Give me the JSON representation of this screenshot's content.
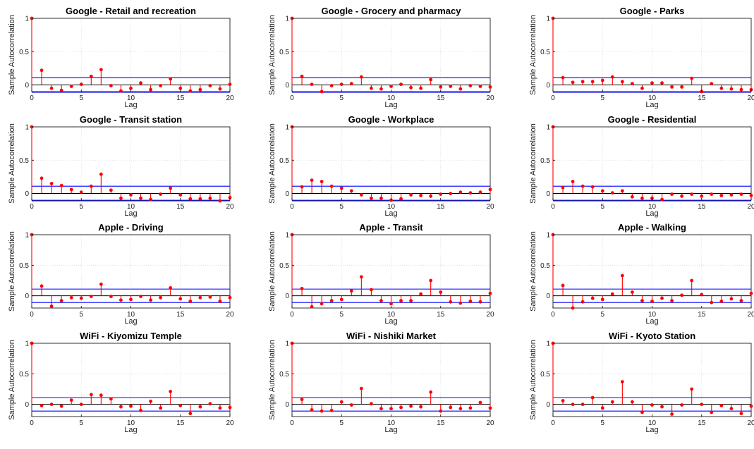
{
  "chart_data": [
    {
      "type": "stem",
      "title": "Google - Retail and recreation",
      "xlabel": "Lag",
      "ylabel": "Sample Autocorrelation",
      "xlim": [
        0,
        20
      ],
      "ylim": [
        -0.1,
        1
      ],
      "xticks": [
        0,
        5,
        10,
        15,
        20
      ],
      "yticks": [
        0,
        0.5,
        1
      ],
      "bounds": [
        0.11,
        -0.11
      ],
      "grid": true,
      "x": [
        0,
        1,
        2,
        3,
        4,
        5,
        6,
        7,
        8,
        9,
        10,
        11,
        12,
        13,
        14,
        15,
        16,
        17,
        18,
        19,
        20
      ],
      "values": [
        1,
        0.22,
        -0.05,
        -0.08,
        -0.02,
        0.01,
        0.13,
        0.23,
        -0.01,
        -0.09,
        -0.05,
        0.03,
        -0.07,
        -0.01,
        0.09,
        -0.05,
        -0.09,
        -0.07,
        -0.01,
        -0.06,
        0.01
      ]
    },
    {
      "type": "stem",
      "title": "Google - Grocery and pharmacy",
      "xlabel": "Lag",
      "ylabel": "Sample Autocorrelation",
      "xlim": [
        0,
        20
      ],
      "ylim": [
        -0.1,
        1
      ],
      "xticks": [
        0,
        5,
        10,
        15,
        20
      ],
      "yticks": [
        0,
        0.5,
        1
      ],
      "bounds": [
        0.11,
        -0.11
      ],
      "grid": true,
      "x": [
        0,
        1,
        2,
        3,
        4,
        5,
        6,
        7,
        8,
        9,
        10,
        11,
        12,
        13,
        14,
        15,
        16,
        17,
        18,
        19,
        20
      ],
      "values": [
        1,
        0.13,
        0.01,
        -0.1,
        -0.01,
        0.01,
        0.02,
        0.12,
        -0.05,
        -0.06,
        -0.02,
        0.01,
        -0.04,
        -0.05,
        0.08,
        -0.03,
        -0.02,
        -0.06,
        -0.01,
        -0.02,
        -0.03
      ]
    },
    {
      "type": "stem",
      "title": "Google - Parks",
      "xlabel": "Lag",
      "ylabel": "Sample Autocorrelation",
      "xlim": [
        0,
        20
      ],
      "ylim": [
        -0.1,
        1
      ],
      "xticks": [
        0,
        5,
        10,
        15,
        20
      ],
      "yticks": [
        0,
        0.5,
        1
      ],
      "bounds": [
        0.11,
        -0.11
      ],
      "grid": true,
      "x": [
        0,
        1,
        2,
        3,
        4,
        5,
        6,
        7,
        8,
        9,
        10,
        11,
        12,
        13,
        14,
        15,
        16,
        17,
        18,
        19,
        20
      ],
      "values": [
        1,
        0.11,
        0.04,
        0.05,
        0.05,
        0.07,
        0.12,
        0.05,
        0.02,
        -0.05,
        0.03,
        0.03,
        -0.03,
        -0.03,
        0.1,
        -0.1,
        0.02,
        -0.05,
        -0.06,
        -0.07,
        -0.07
      ]
    },
    {
      "type": "stem",
      "title": "Google - Transit station",
      "xlabel": "Lag",
      "ylabel": "Sample Autocorrelation",
      "xlim": [
        0,
        20
      ],
      "ylim": [
        -0.1,
        1
      ],
      "xticks": [
        0,
        5,
        10,
        15,
        20
      ],
      "yticks": [
        0,
        0.5,
        1
      ],
      "bounds": [
        0.11,
        -0.11
      ],
      "grid": true,
      "x": [
        0,
        1,
        2,
        3,
        4,
        5,
        6,
        7,
        8,
        9,
        10,
        11,
        12,
        13,
        14,
        15,
        16,
        17,
        18,
        19,
        20
      ],
      "values": [
        1,
        0.23,
        0.15,
        0.12,
        0.06,
        0.02,
        0.11,
        0.29,
        0.05,
        -0.07,
        -0.02,
        -0.07,
        -0.09,
        -0.01,
        0.08,
        -0.02,
        -0.08,
        -0.08,
        -0.07,
        -0.11,
        -0.06
      ]
    },
    {
      "type": "stem",
      "title": "Google - Workplace",
      "xlabel": "Lag",
      "ylabel": "Sample Autocorrelation",
      "xlim": [
        0,
        20
      ],
      "ylim": [
        -0.1,
        1
      ],
      "xticks": [
        0,
        5,
        10,
        15,
        20
      ],
      "yticks": [
        0,
        0.5,
        1
      ],
      "bounds": [
        0.11,
        -0.11
      ],
      "grid": true,
      "x": [
        0,
        1,
        2,
        3,
        4,
        5,
        6,
        7,
        8,
        9,
        10,
        11,
        12,
        13,
        14,
        15,
        16,
        17,
        18,
        19,
        20
      ],
      "values": [
        1,
        0.1,
        0.2,
        0.18,
        0.11,
        0.08,
        0.04,
        -0.02,
        -0.07,
        -0.07,
        -0.1,
        -0.08,
        -0.02,
        -0.03,
        -0.04,
        -0.01,
        0,
        0.02,
        0.01,
        0.02,
        0.06
      ]
    },
    {
      "type": "stem",
      "title": "Google - Residential",
      "xlabel": "Lag",
      "ylabel": "Sample Autocorrelation",
      "xlim": [
        0,
        20
      ],
      "ylim": [
        -0.1,
        1
      ],
      "xticks": [
        0,
        5,
        10,
        15,
        20
      ],
      "yticks": [
        0,
        0.5,
        1
      ],
      "bounds": [
        0.11,
        -0.11
      ],
      "grid": true,
      "x": [
        0,
        1,
        2,
        3,
        4,
        5,
        6,
        7,
        8,
        9,
        10,
        11,
        12,
        13,
        14,
        15,
        16,
        17,
        18,
        19,
        20
      ],
      "values": [
        1,
        0.09,
        0.18,
        0.11,
        0.1,
        0.04,
        0.01,
        0.04,
        -0.05,
        -0.07,
        -0.07,
        -0.09,
        -0.01,
        -0.04,
        -0.01,
        -0.04,
        -0.01,
        -0.03,
        -0.02,
        -0.01,
        -0.03
      ]
    },
    {
      "type": "stem",
      "title": "Apple - Driving",
      "xlabel": "Lag",
      "ylabel": "Sample Autocorrelation",
      "xlim": [
        0,
        20
      ],
      "ylim": [
        -0.2,
        1
      ],
      "xticks": [
        0,
        5,
        10,
        15,
        20
      ],
      "yticks": [
        0,
        0.5,
        1
      ],
      "bounds": [
        0.11,
        -0.11
      ],
      "grid": true,
      "x": [
        0,
        1,
        2,
        3,
        4,
        5,
        6,
        7,
        8,
        9,
        10,
        11,
        12,
        13,
        14,
        15,
        16,
        17,
        18,
        19,
        20
      ],
      "values": [
        1,
        0.16,
        -0.17,
        -0.08,
        -0.03,
        -0.04,
        -0.01,
        0.19,
        -0.01,
        -0.07,
        -0.06,
        -0.01,
        -0.07,
        -0.03,
        0.13,
        -0.05,
        -0.09,
        -0.03,
        -0.02,
        -0.09,
        -0.03
      ]
    },
    {
      "type": "stem",
      "title": "Apple - Transit",
      "xlabel": "Lag",
      "ylabel": "Sample Autocorrelation",
      "xlim": [
        0,
        20
      ],
      "ylim": [
        -0.2,
        1
      ],
      "xticks": [
        0,
        5,
        10,
        15,
        20
      ],
      "yticks": [
        0,
        0.5,
        1
      ],
      "bounds": [
        0.11,
        -0.11
      ],
      "grid": true,
      "x": [
        0,
        1,
        2,
        3,
        4,
        5,
        6,
        7,
        8,
        9,
        10,
        11,
        12,
        13,
        14,
        15,
        16,
        17,
        18,
        19,
        20
      ],
      "values": [
        1,
        0.12,
        -0.18,
        -0.13,
        -0.08,
        -0.06,
        0.08,
        0.31,
        0.1,
        -0.08,
        -0.13,
        -0.08,
        -0.08,
        0.03,
        0.25,
        0.06,
        -0.1,
        -0.12,
        -0.09,
        -0.1,
        0.04
      ]
    },
    {
      "type": "stem",
      "title": "Apple - Walking",
      "xlabel": "Lag",
      "ylabel": "Sample Autocorrelation",
      "xlim": [
        0,
        20
      ],
      "ylim": [
        -0.2,
        1
      ],
      "xticks": [
        0,
        5,
        10,
        15,
        20
      ],
      "yticks": [
        0,
        0.5,
        1
      ],
      "bounds": [
        0.11,
        -0.11
      ],
      "grid": true,
      "x": [
        0,
        1,
        2,
        3,
        4,
        5,
        6,
        7,
        8,
        9,
        10,
        11,
        12,
        13,
        14,
        15,
        16,
        17,
        18,
        19,
        20
      ],
      "values": [
        1,
        0.17,
        -0.2,
        -0.1,
        -0.04,
        -0.06,
        0.03,
        0.33,
        0.06,
        -0.08,
        -0.09,
        -0.04,
        -0.08,
        0.01,
        0.25,
        0.02,
        -0.11,
        -0.09,
        -0.05,
        -0.08,
        0.04
      ]
    },
    {
      "type": "stem",
      "title": "WiFi - Kiyomizu Temple",
      "xlabel": "Lag",
      "ylabel": "Sample Autocorrelation",
      "xlim": [
        0,
        20
      ],
      "ylim": [
        -0.2,
        1
      ],
      "xticks": [
        0,
        5,
        10,
        15,
        20
      ],
      "yticks": [
        0,
        0.5,
        1
      ],
      "bounds": [
        0.11,
        -0.11
      ],
      "grid": true,
      "x": [
        0,
        1,
        2,
        3,
        4,
        5,
        6,
        7,
        8,
        9,
        10,
        11,
        12,
        13,
        14,
        15,
        16,
        17,
        18,
        19,
        20
      ],
      "values": [
        1,
        -0.02,
        0,
        -0.03,
        0.07,
        0,
        0.16,
        0.15,
        0.09,
        -0.04,
        -0.03,
        -0.1,
        0.05,
        -0.06,
        0.21,
        -0.02,
        -0.15,
        -0.04,
        0.01,
        -0.06,
        -0.05
      ]
    },
    {
      "type": "stem",
      "title": "WiFi - Nishiki Market",
      "xlabel": "Lag",
      "ylabel": "Sample Autocorrelation",
      "xlim": [
        0,
        20
      ],
      "ylim": [
        -0.2,
        1
      ],
      "xticks": [
        0,
        5,
        10,
        15,
        20
      ],
      "yticks": [
        0,
        0.5,
        1
      ],
      "bounds": [
        0.11,
        -0.11
      ],
      "grid": true,
      "x": [
        0,
        1,
        2,
        3,
        4,
        5,
        6,
        7,
        8,
        9,
        10,
        11,
        12,
        13,
        14,
        15,
        16,
        17,
        18,
        19,
        20
      ],
      "values": [
        1,
        0.08,
        -0.09,
        -0.11,
        -0.1,
        0.04,
        -0.01,
        0.26,
        0.01,
        -0.07,
        -0.07,
        -0.05,
        -0.03,
        -0.04,
        0.2,
        -0.11,
        -0.05,
        -0.07,
        -0.06,
        0.03,
        -0.06
      ]
    },
    {
      "type": "stem",
      "title": "WiFi - Kyoto Station",
      "xlabel": "Lag",
      "ylabel": "Sample Autocorrelation",
      "xlim": [
        0,
        20
      ],
      "ylim": [
        -0.2,
        1
      ],
      "xticks": [
        0,
        5,
        10,
        15,
        20
      ],
      "yticks": [
        0,
        0.5,
        1
      ],
      "bounds": [
        0.11,
        -0.11
      ],
      "grid": true,
      "x": [
        0,
        1,
        2,
        3,
        4,
        5,
        6,
        7,
        8,
        9,
        10,
        11,
        12,
        13,
        14,
        15,
        16,
        17,
        18,
        19,
        20
      ],
      "values": [
        1,
        0.06,
        0,
        0,
        0.11,
        -0.06,
        0.04,
        0.37,
        0.04,
        -0.13,
        -0.01,
        -0.04,
        -0.16,
        -0.01,
        0.25,
        0,
        -0.13,
        -0.02,
        -0.07,
        -0.15,
        -0.03
      ]
    }
  ],
  "style": {
    "stem_color": "#ff0000",
    "marker_color": "#ff0000",
    "bound_color": "#0000ff",
    "axis_color": "#000000",
    "grid_color": "#d9d9d9"
  }
}
